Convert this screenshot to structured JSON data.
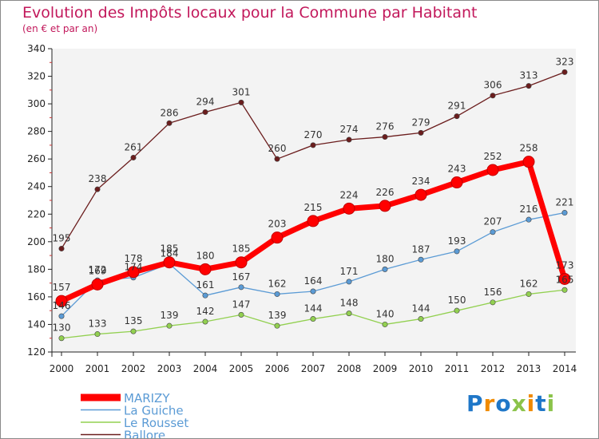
{
  "chart_data": {
    "type": "line",
    "title": "Evolution des Impôts locaux pour la Commune par Habitant",
    "subtitle": "(en € et par an)",
    "x": [
      "2000",
      "2001",
      "2002",
      "2003",
      "2004",
      "2005",
      "2006",
      "2007",
      "2008",
      "2009",
      "2010",
      "2011",
      "2012",
      "2013",
      "2014"
    ],
    "ylim": [
      120,
      340
    ],
    "yticks": [
      120,
      140,
      160,
      180,
      200,
      220,
      240,
      260,
      280,
      300,
      320,
      340
    ],
    "grid": false,
    "legend_position": "bottom-left",
    "series": [
      {
        "name": "MARIZY",
        "color": "#ff0000",
        "values": [
          157,
          169,
          178,
          185,
          180,
          185,
          203,
          215,
          224,
          226,
          234,
          243,
          252,
          258,
          173
        ]
      },
      {
        "name": "La Guiche",
        "color": "#5b9bd5",
        "values": [
          146,
          172,
          174,
          184,
          161,
          167,
          162,
          164,
          171,
          180,
          187,
          193,
          207,
          216,
          221
        ]
      },
      {
        "name": "Le Rousset",
        "color": "#92d050",
        "values": [
          130,
          133,
          135,
          139,
          142,
          147,
          139,
          144,
          148,
          140,
          144,
          150,
          156,
          162,
          165
        ]
      },
      {
        "name": "Ballore",
        "color": "#6b1d1d",
        "values": [
          195,
          238,
          261,
          286,
          294,
          301,
          260,
          270,
          274,
          276,
          279,
          291,
          306,
          313,
          323
        ]
      }
    ]
  },
  "logo": {
    "text": "Proxiti",
    "colors": [
      "#1f77c8",
      "#f08a00",
      "#1f77c8",
      "#8bc34a",
      "#f08a00",
      "#1f77c8",
      "#8bc34a"
    ]
  }
}
